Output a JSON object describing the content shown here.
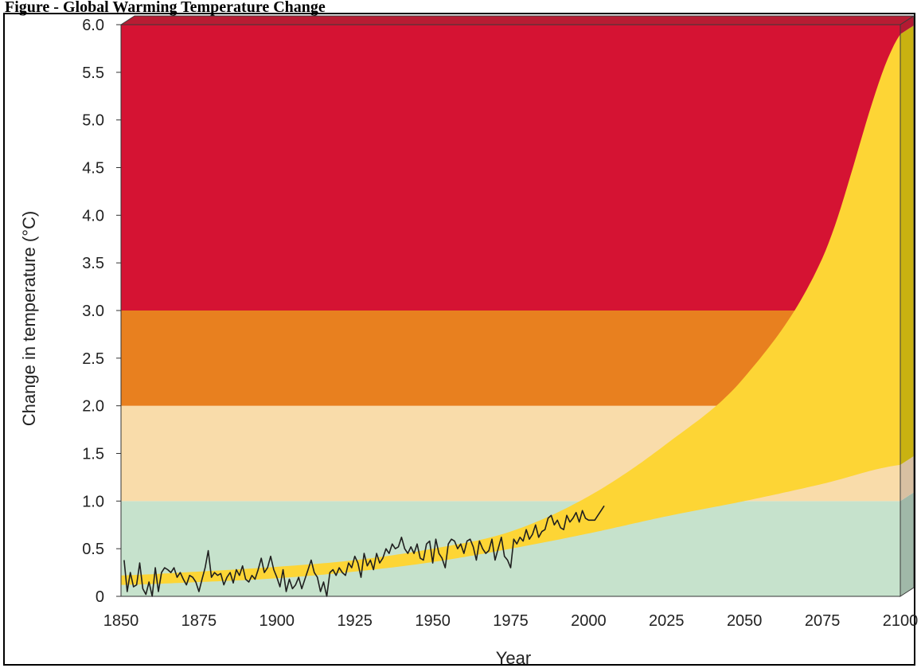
{
  "figure_title": "Figure - Global Warming Temperature Change",
  "chart_data": {
    "type": "area",
    "title": "Figure - Global Warming Temperature Change",
    "xlabel": "Year",
    "ylabel": "Change in temperature (°C)",
    "xlim": [
      1850,
      2100
    ],
    "ylim": [
      0,
      6.0
    ],
    "x_ticks": [
      "1850",
      "1875",
      "1900",
      "1925",
      "1950",
      "1975",
      "2000",
      "2025",
      "2050",
      "2075",
      "2100"
    ],
    "y_ticks": [
      "0",
      "0.5",
      "1.0",
      "1.5",
      "2.0",
      "2.5",
      "3.0",
      "3.5",
      "4.0",
      "4.5",
      "5.0",
      "5.5",
      "6.0"
    ],
    "bands": [
      {
        "from": 0,
        "to": 1.0,
        "color": "#c6e2cc"
      },
      {
        "from": 1.0,
        "to": 2.0,
        "color": "#f9dcaa"
      },
      {
        "from": 2.0,
        "to": 3.0,
        "color": "#e8801f"
      },
      {
        "from": 3.0,
        "to": 6.0,
        "color": "#d51333"
      }
    ],
    "projection_band": {
      "color": "#fdd535",
      "x": [
        1850,
        1875,
        1900,
        1925,
        1950,
        1975,
        2000,
        2025,
        2050,
        2075,
        2100
      ],
      "upper": [
        0.22,
        0.26,
        0.31,
        0.38,
        0.5,
        0.68,
        1.05,
        1.6,
        2.3,
        3.55,
        5.9
      ],
      "lower": [
        0.12,
        0.15,
        0.19,
        0.26,
        0.36,
        0.5,
        0.66,
        0.84,
        1.0,
        1.18,
        1.38
      ]
    },
    "observed": {
      "color": "#1f1f1f",
      "x": [
        1851,
        1852,
        1853,
        1854,
        1855,
        1856,
        1857,
        1858,
        1859,
        1860,
        1861,
        1862,
        1863,
        1864,
        1865,
        1866,
        1867,
        1868,
        1869,
        1870,
        1871,
        1872,
        1873,
        1874,
        1875,
        1876,
        1877,
        1878,
        1879,
        1880,
        1881,
        1882,
        1883,
        1884,
        1885,
        1886,
        1887,
        1888,
        1889,
        1890,
        1891,
        1892,
        1893,
        1894,
        1895,
        1896,
        1897,
        1898,
        1899,
        1900,
        1901,
        1902,
        1903,
        1904,
        1905,
        1906,
        1907,
        1908,
        1909,
        1910,
        1911,
        1912,
        1913,
        1914,
        1915,
        1916,
        1917,
        1918,
        1919,
        1920,
        1921,
        1922,
        1923,
        1924,
        1925,
        1926,
        1927,
        1928,
        1929,
        1930,
        1931,
        1932,
        1933,
        1934,
        1935,
        1936,
        1937,
        1938,
        1939,
        1940,
        1941,
        1942,
        1943,
        1944,
        1945,
        1946,
        1947,
        1948,
        1949,
        1950,
        1951,
        1952,
        1953,
        1954,
        1955,
        1956,
        1957,
        1958,
        1959,
        1960,
        1961,
        1962,
        1963,
        1964,
        1965,
        1966,
        1967,
        1968,
        1969,
        1970,
        1971,
        1972,
        1973,
        1974,
        1975,
        1976,
        1977,
        1978,
        1979,
        1980,
        1981,
        1982,
        1983,
        1984,
        1985,
        1986,
        1987,
        1988,
        1989,
        1990,
        1991,
        1992,
        1993,
        1994,
        1995,
        1996,
        1997,
        1998,
        1999,
        2000,
        2001,
        2002,
        2003,
        2004,
        2005
      ],
      "y": [
        0.38,
        0.05,
        0.25,
        0.1,
        0.12,
        0.35,
        0.08,
        0.02,
        0.15,
        0.0,
        0.3,
        0.05,
        0.25,
        0.3,
        0.28,
        0.25,
        0.3,
        0.2,
        0.25,
        0.18,
        0.12,
        0.22,
        0.2,
        0.15,
        0.05,
        0.18,
        0.3,
        0.48,
        0.2,
        0.25,
        0.22,
        0.24,
        0.12,
        0.2,
        0.25,
        0.14,
        0.28,
        0.22,
        0.32,
        0.18,
        0.15,
        0.22,
        0.18,
        0.28,
        0.4,
        0.25,
        0.3,
        0.42,
        0.28,
        0.2,
        0.1,
        0.28,
        0.05,
        0.18,
        0.08,
        0.12,
        0.2,
        0.08,
        0.18,
        0.28,
        0.38,
        0.25,
        0.2,
        0.05,
        0.15,
        0.0,
        0.25,
        0.28,
        0.22,
        0.3,
        0.25,
        0.22,
        0.35,
        0.3,
        0.42,
        0.35,
        0.2,
        0.45,
        0.32,
        0.38,
        0.28,
        0.45,
        0.35,
        0.4,
        0.5,
        0.45,
        0.55,
        0.5,
        0.52,
        0.62,
        0.5,
        0.45,
        0.52,
        0.45,
        0.55,
        0.4,
        0.38,
        0.55,
        0.58,
        0.35,
        0.6,
        0.45,
        0.4,
        0.3,
        0.55,
        0.6,
        0.58,
        0.5,
        0.55,
        0.45,
        0.58,
        0.6,
        0.52,
        0.38,
        0.58,
        0.5,
        0.45,
        0.48,
        0.6,
        0.38,
        0.5,
        0.62,
        0.42,
        0.38,
        0.3,
        0.6,
        0.55,
        0.62,
        0.58,
        0.7,
        0.6,
        0.65,
        0.75,
        0.62,
        0.68,
        0.7,
        0.82,
        0.85,
        0.75,
        0.8,
        0.72,
        0.7,
        0.85,
        0.78,
        0.82,
        0.88,
        0.78,
        0.9,
        0.82,
        0.8,
        0.8,
        0.8,
        0.85,
        0.9,
        0.95
      ]
    },
    "depth_face": {
      "colors": [
        "#a0b8a8",
        "#d8c0a2",
        "#c9b211",
        "#b31a32"
      ],
      "yellow_upper_at_right": 5.9,
      "yellow_lower_at_right": 1.38
    }
  }
}
